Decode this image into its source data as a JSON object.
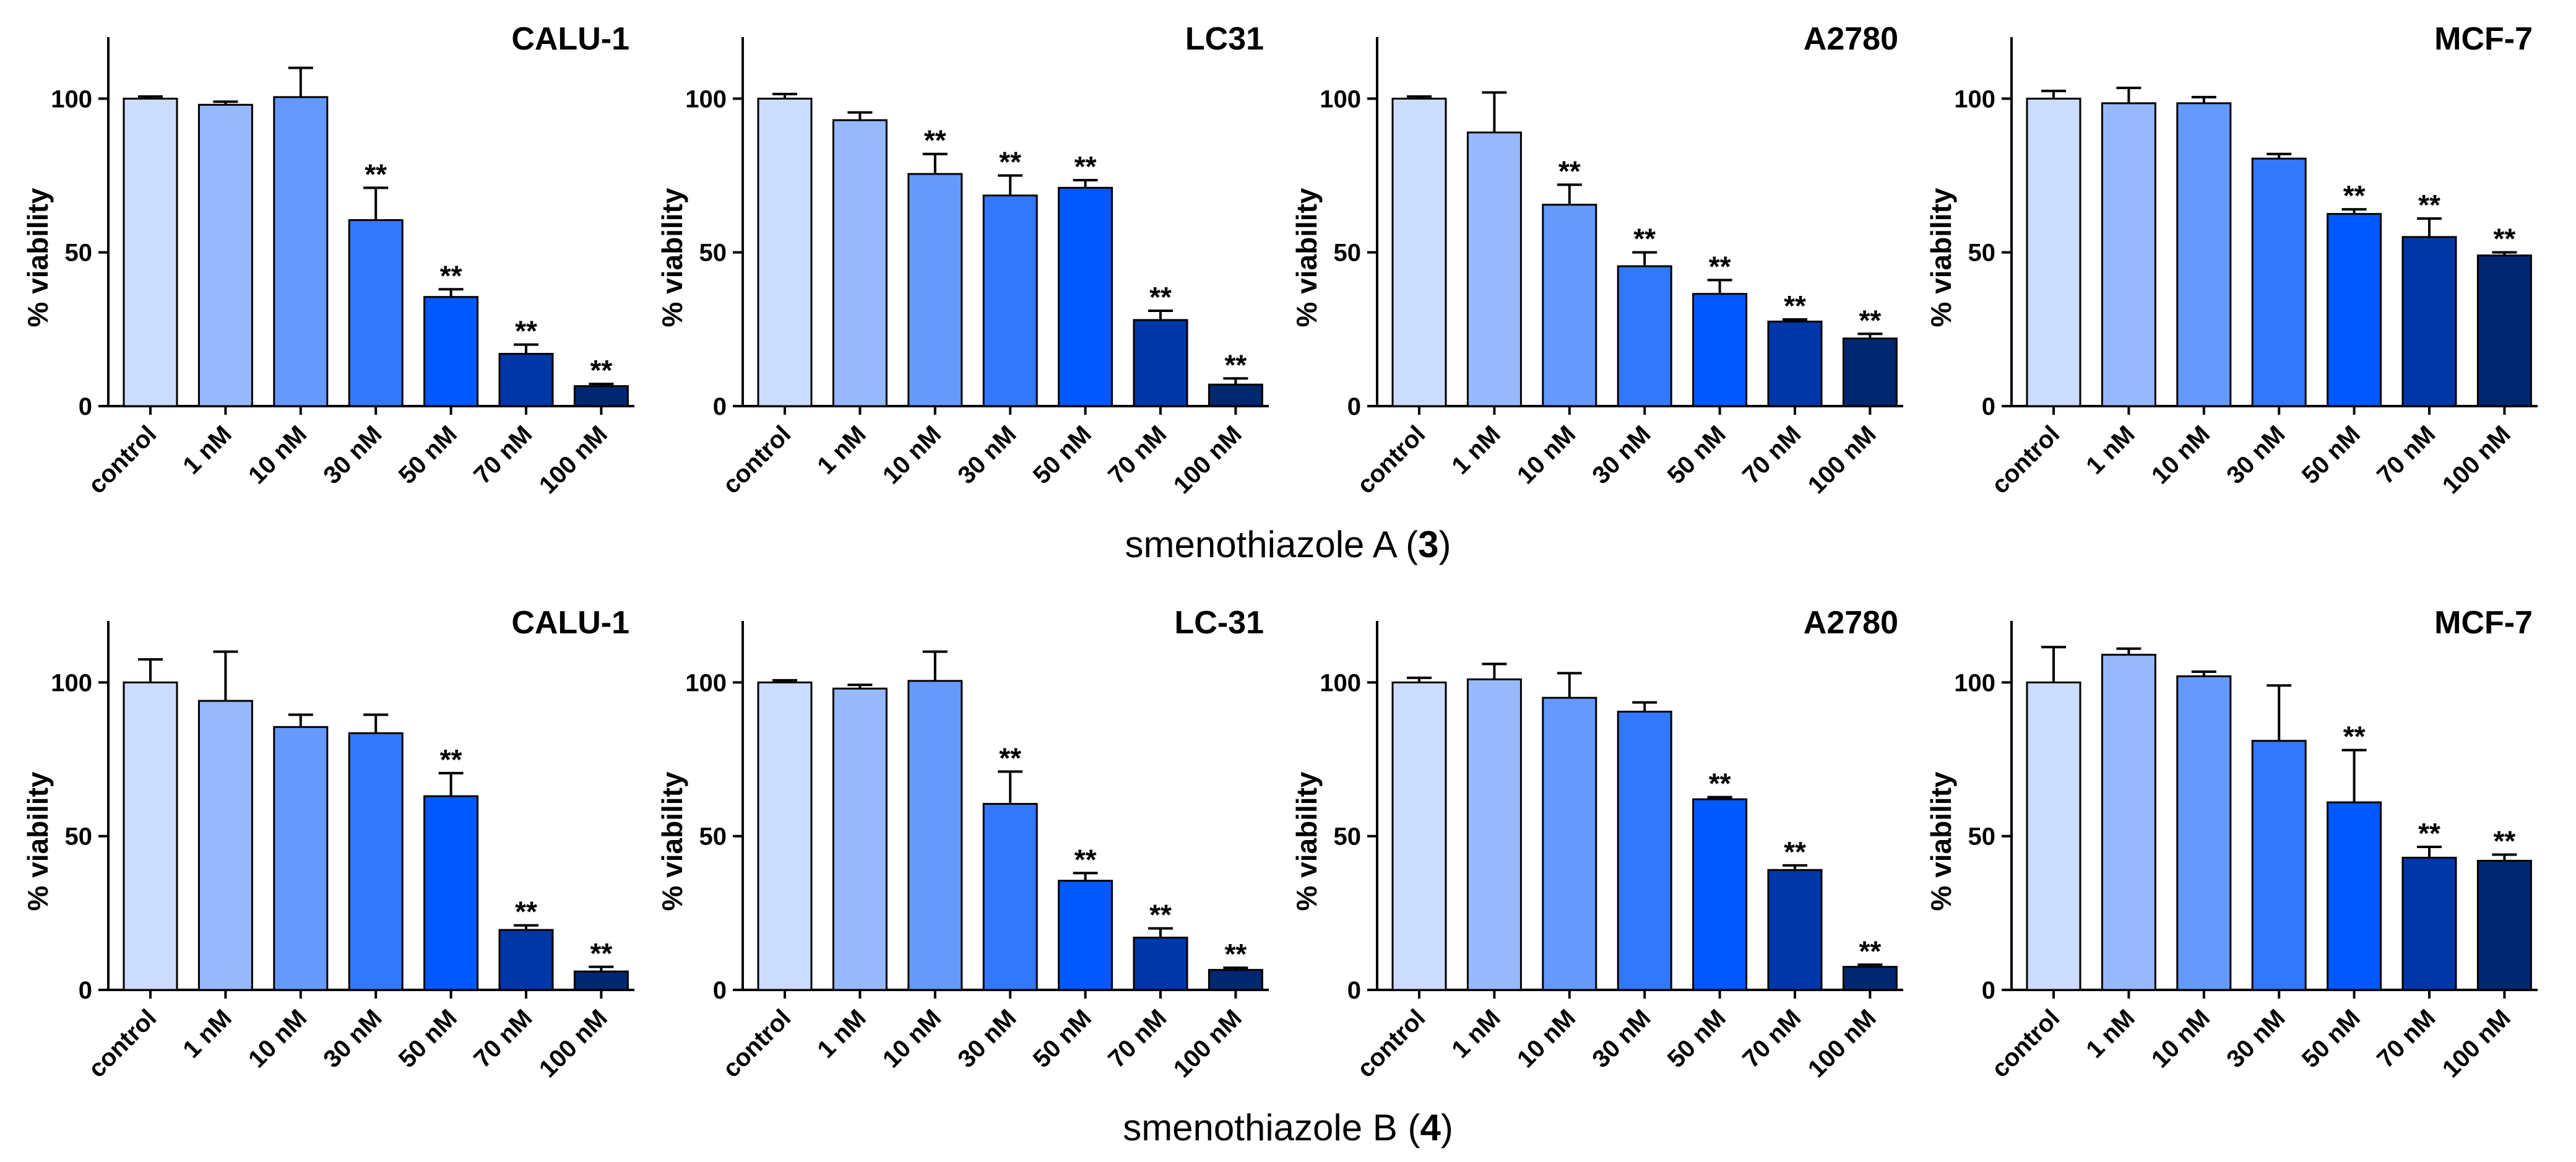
{
  "figure": {
    "rows": [
      {
        "compound_prefix": "smenothiazole A (",
        "compound_number": "3",
        "compound_suffix": ")"
      },
      {
        "compound_prefix": "smenothiazole B (",
        "compound_number": "4",
        "compound_suffix": ")"
      }
    ],
    "colors": [
      "#ccdcfd",
      "#97b9fb",
      "#6699fc",
      "#3378fb",
      "#0059fc",
      "#0037a8",
      "#002870"
    ]
  },
  "chart_data": [
    {
      "type": "bar",
      "row": 0,
      "col": 0,
      "title": "CALU-1",
      "ylabel": "% viability",
      "xlabel": "",
      "categories": [
        "control",
        "1 nM",
        "10 nM",
        "30 nM",
        "50 nM",
        "70 nM",
        "100 nM"
      ],
      "values": [
        100,
        98,
        100.5,
        60.5,
        35.5,
        17,
        6.5
      ],
      "errors": [
        0.7,
        1,
        9.5,
        10.5,
        2.5,
        3,
        0.7
      ],
      "significance": [
        "",
        "",
        "",
        "**",
        "**",
        "**",
        "**"
      ],
      "ylim": [
        0,
        120
      ],
      "yticks": [
        0,
        50,
        100
      ],
      "grid": false
    },
    {
      "type": "bar",
      "row": 0,
      "col": 1,
      "title": "LC31",
      "ylabel": "% viability",
      "xlabel": "",
      "categories": [
        "control",
        "1 nM",
        "10 nM",
        "30 nM",
        "50 nM",
        "70 nM",
        "100 nM"
      ],
      "values": [
        100,
        93,
        75.5,
        68.5,
        71,
        28,
        7
      ],
      "errors": [
        1.5,
        2.5,
        6.5,
        6.5,
        2.5,
        3,
        2
      ],
      "significance": [
        "",
        "",
        "**",
        "**",
        "**",
        "**",
        "**"
      ],
      "ylim": [
        0,
        120
      ],
      "yticks": [
        0,
        50,
        100
      ],
      "grid": false
    },
    {
      "type": "bar",
      "row": 0,
      "col": 2,
      "title": "A2780",
      "ylabel": "% viability",
      "xlabel": "",
      "categories": [
        "control",
        "1 nM",
        "10 nM",
        "30 nM",
        "50 nM",
        "70 nM",
        "100 nM"
      ],
      "values": [
        100,
        89,
        65.5,
        45.5,
        36.5,
        27.5,
        22
      ],
      "errors": [
        0.7,
        13,
        6.5,
        4.5,
        4.5,
        0.7,
        1.5
      ],
      "significance": [
        "",
        "",
        "**",
        "**",
        "**",
        "**",
        "**"
      ],
      "ylim": [
        0,
        120
      ],
      "yticks": [
        0,
        50,
        100
      ],
      "grid": false
    },
    {
      "type": "bar",
      "row": 0,
      "col": 3,
      "title": "MCF-7",
      "ylabel": "% viability",
      "xlabel": "",
      "categories": [
        "control",
        "1 nM",
        "10 nM",
        "30 nM",
        "50 nM",
        "70 nM",
        "100 nM"
      ],
      "values": [
        100,
        98.5,
        98.5,
        80.5,
        62.5,
        55,
        49
      ],
      "errors": [
        2.5,
        5,
        2,
        1.5,
        1.5,
        6,
        1
      ],
      "significance": [
        "",
        "",
        "",
        "",
        "**",
        "**",
        "**"
      ],
      "ylim": [
        0,
        120
      ],
      "yticks": [
        0,
        50,
        100
      ],
      "grid": false
    },
    {
      "type": "bar",
      "row": 1,
      "col": 0,
      "title": "CALU-1",
      "ylabel": "% viability",
      "xlabel": "",
      "categories": [
        "control",
        "1 nM",
        "10 nM",
        "30 nM",
        "50 nM",
        "70 nM",
        "100 nM"
      ],
      "values": [
        100,
        94,
        85.5,
        83.5,
        63,
        19.5,
        6
      ],
      "errors": [
        7.5,
        16,
        4,
        6,
        7.5,
        1.5,
        1.5
      ],
      "significance": [
        "",
        "",
        "",
        "",
        "**",
        "**",
        "**"
      ],
      "ylim": [
        0,
        120
      ],
      "yticks": [
        0,
        50,
        100
      ],
      "grid": false
    },
    {
      "type": "bar",
      "row": 1,
      "col": 1,
      "title": "LC-31",
      "ylabel": "% viability",
      "xlabel": "",
      "categories": [
        "control",
        "1 nM",
        "10 nM",
        "30 nM",
        "50 nM",
        "70 nM",
        "100 nM"
      ],
      "values": [
        100,
        98,
        100.5,
        60.5,
        35.5,
        17,
        6.5
      ],
      "errors": [
        0.7,
        1.2,
        9.5,
        10.5,
        2.5,
        3,
        0.7
      ],
      "significance": [
        "",
        "",
        "",
        "**",
        "**",
        "**",
        "**"
      ],
      "ylim": [
        0,
        120
      ],
      "yticks": [
        0,
        50,
        100
      ],
      "grid": false
    },
    {
      "type": "bar",
      "row": 1,
      "col": 2,
      "title": "A2780",
      "ylabel": "% viability",
      "xlabel": "",
      "categories": [
        "control",
        "1 nM",
        "10 nM",
        "30 nM",
        "50 nM",
        "70 nM",
        "100 nM"
      ],
      "values": [
        100,
        101,
        95,
        90.5,
        62,
        39,
        7.5
      ],
      "errors": [
        1.5,
        5,
        8,
        3,
        0.7,
        1.5,
        0.7
      ],
      "significance": [
        "",
        "",
        "",
        "",
        "**",
        "**",
        "**"
      ],
      "ylim": [
        0,
        120
      ],
      "yticks": [
        0,
        50,
        100
      ],
      "grid": false
    },
    {
      "type": "bar",
      "row": 1,
      "col": 3,
      "title": "MCF-7",
      "ylabel": "% viability",
      "xlabel": "",
      "categories": [
        "control",
        "1 nM",
        "10 nM",
        "30 nM",
        "50 nM",
        "70 nM",
        "100 nM"
      ],
      "values": [
        100,
        109,
        102,
        81,
        61,
        43,
        42
      ],
      "errors": [
        11.5,
        2,
        1.5,
        18,
        17,
        3.5,
        2
      ],
      "significance": [
        "",
        "",
        "",
        "",
        "**",
        "**",
        "**"
      ],
      "ylim": [
        0,
        120
      ],
      "yticks": [
        0,
        50,
        100
      ],
      "grid": false
    }
  ]
}
